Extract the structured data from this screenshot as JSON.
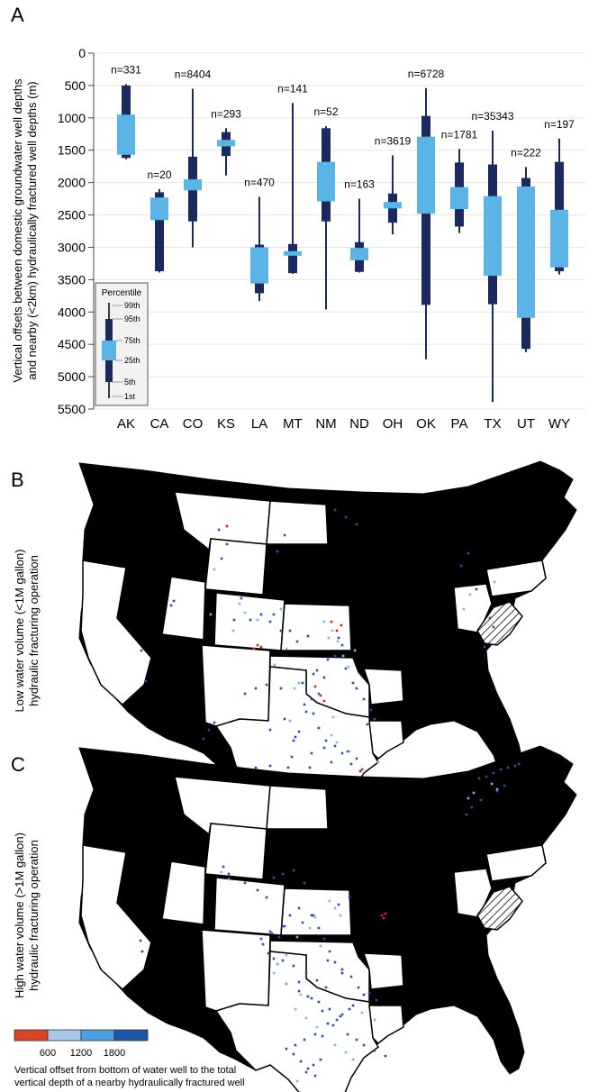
{
  "panels": {
    "a": {
      "letter": "A"
    },
    "b": {
      "letter": "B",
      "ylabel_line1": "Low water volume (<1M gallon)",
      "ylabel_line2": "hydraulic fracturing operation"
    },
    "c": {
      "letter": "C",
      "ylabel_line1": "High water volume (>1M gallon)",
      "ylabel_line2": "hydraulic fracturing operation"
    }
  },
  "colors": {
    "whisker": "#1b2a5e",
    "box": "#5ab4e6",
    "grid": "#e6e6e6",
    "land_dark": "#000000",
    "land_light": "#ffffff",
    "scale": [
      "#d7452b",
      "#a8c6e8",
      "#4f9fde",
      "#1e56a8"
    ],
    "scatter_dark": "#2d4fa8",
    "scatter_light": "#78b8e8",
    "scatter_red": "#d2291e"
  },
  "chart_data": [
    {
      "type": "box",
      "title": "",
      "ylabel_line1": "Vertical offsets between domestic groundwater well depths",
      "ylabel_line2": "and nearby (<2km) hydraulically fractured well depths (m)",
      "y_inverted": true,
      "ylim": [
        0,
        5500
      ],
      "yticks": [
        0,
        500,
        1000,
        1500,
        2000,
        2500,
        3000,
        3500,
        4000,
        4500,
        5000,
        5500
      ],
      "grid": true,
      "categories": [
        "AK",
        "CA",
        "CO",
        "KS",
        "LA",
        "MT",
        "NM",
        "ND",
        "OH",
        "OK",
        "PA",
        "TX",
        "UT",
        "WY"
      ],
      "counts": [
        "n=331",
        "n=20",
        "n=8404",
        "n=293",
        "n=470",
        "n=141",
        "n=52",
        "n=163",
        "n=3619",
        "n=6728",
        "n=1781",
        "n=35343",
        "n=222",
        "n=197"
      ],
      "percentiles": [
        {
          "p1": 480,
          "p5": 500,
          "p25": 950,
          "p75": 1570,
          "p95": 1620,
          "p99": 1640
        },
        {
          "p1": 2100,
          "p5": 2150,
          "p25": 2230,
          "p75": 2580,
          "p95": 3370,
          "p99": 3390
        },
        {
          "p1": 550,
          "p5": 1600,
          "p25": 1950,
          "p75": 2120,
          "p95": 2600,
          "p99": 3000
        },
        {
          "p1": 1160,
          "p5": 1220,
          "p25": 1340,
          "p75": 1440,
          "p95": 1590,
          "p99": 1890
        },
        {
          "p1": 2220,
          "p5": 2960,
          "p25": 3000,
          "p75": 3560,
          "p95": 3710,
          "p99": 3830
        },
        {
          "p1": 770,
          "p5": 2950,
          "p25": 3060,
          "p75": 3130,
          "p95": 3400,
          "p99": 3410
        },
        {
          "p1": 1130,
          "p5": 1160,
          "p25": 1680,
          "p75": 2290,
          "p95": 2600,
          "p99": 3960
        },
        {
          "p1": 2250,
          "p5": 2920,
          "p25": 3010,
          "p75": 3200,
          "p95": 3380,
          "p99": 3390
        },
        {
          "p1": 1580,
          "p5": 2170,
          "p25": 2300,
          "p75": 2400,
          "p95": 2620,
          "p99": 2800
        },
        {
          "p1": 540,
          "p5": 970,
          "p25": 1290,
          "p75": 2480,
          "p95": 3890,
          "p99": 4730
        },
        {
          "p1": 1480,
          "p5": 1690,
          "p25": 2070,
          "p75": 2410,
          "p95": 2680,
          "p99": 2780
        },
        {
          "p1": 1200,
          "p5": 1720,
          "p25": 2210,
          "p75": 3440,
          "p95": 3880,
          "p99": 5390
        },
        {
          "p1": 1760,
          "p5": 1930,
          "p25": 2060,
          "p75": 4090,
          "p95": 4570,
          "p99": 4620
        },
        {
          "p1": 1320,
          "p5": 1680,
          "p25": 2420,
          "p75": 3310,
          "p95": 3370,
          "p99": 3420
        }
      ],
      "legend": {
        "title": "Percentile",
        "labels": [
          "99th",
          "95th",
          "75th",
          "25th",
          "5th",
          "1st"
        ]
      }
    },
    {
      "type": "scatter",
      "panel": "B",
      "series": [
        {
          "color_key": "scatter_dark",
          "x": [
            162,
            157,
            190,
            193,
            260,
            268,
            278,
            290,
            300,
            304,
            312,
            322,
            330,
            342,
            336,
            348,
            352,
            360,
            364,
            372,
            376,
            380,
            384,
            392,
            396,
            404,
            412,
            408,
            416,
            338,
            346,
            354,
            340,
            332,
            326,
            324,
            344,
            352,
            360,
            368,
            320,
            334,
            322,
            340,
            356,
            362,
            386,
            396,
            410,
            420,
            312,
            296,
            284,
            272,
            300,
            316,
            328,
            346,
            238,
            232,
            226,
            214,
            248,
            258,
            270,
            284,
            300,
            304,
            306,
            314,
            348,
            354,
            362,
            372,
            380,
            390,
            400,
            356,
            370,
            384,
            376,
            358,
            544,
            548,
            538,
            529,
            512,
            520,
            243,
            252,
            246,
            308,
            316,
            372,
            384,
            396
          ],
          "y": [
            756,
            722,
            672,
            667,
            688,
            664,
            688,
            682,
            690,
            682,
            700,
            700,
            712,
            706,
            758,
            748,
            744,
            752,
            732,
            728,
            708,
            716,
            742,
            758,
            764,
            776,
            788,
            804,
            798,
            782,
            776,
            770,
            790,
            812,
            822,
            840,
            852,
            864,
            830,
            846,
            852,
            870,
            888,
            876,
            900,
            910,
            834,
            842,
            876,
            888,
            764,
            760,
            764,
            770,
            810,
            798,
            818,
            836,
            802,
            810,
            820,
            856,
            868,
            880,
            874,
            852,
            850,
            866,
            882,
            892,
            792,
            808,
            822,
            828,
            836,
            848,
            856,
            886,
            900,
            914,
            928,
            942,
            686,
            696,
            718,
            654,
            628,
            614,
            588,
            604,
            620,
            612,
            594,
            566,
            574,
            582
          ]
        },
        {
          "color_key": "scatter_light",
          "x": [
            375,
            381,
            387,
            369,
            360,
            365,
            394,
            370,
            332,
            327,
            305,
            318,
            322,
            331,
            340,
            352,
            368,
            374,
            388,
            420,
            390,
            266,
            272,
            259,
            312,
            286,
            238,
            234,
            549,
            522,
            515
          ],
          "y": [
            712,
            728,
            740,
            700,
            690,
            708,
            722,
            796,
            758,
            764,
            738,
            720,
            800,
            860,
            870,
            880,
            816,
            824,
            834,
            846,
            902,
            670,
            680,
            700,
            676,
            688,
            632,
            682,
            646,
            660,
            676
          ]
        },
        {
          "color_key": "scatter_red",
          "x": [
            286,
            290,
            282,
            379,
            374,
            368,
            350,
            356,
            360,
            396,
            402,
            410,
            400,
            252
          ],
          "y": [
            716,
            718,
            720,
            694,
            700,
            690,
            762,
            772,
            778,
            866,
            854,
            900,
            880,
            584
          ]
        }
      ]
    },
    {
      "type": "scatter",
      "panel": "C",
      "series": [
        {
          "color_key": "scatter_dark",
          "x": [
            156,
            158,
            292,
            298,
            304,
            308,
            248,
            254,
            272,
            286,
            296,
            304,
            314,
            326,
            338,
            300,
            310,
            316,
            322,
            332,
            346,
            354,
            360,
            366,
            372,
            380,
            390,
            398,
            410,
            418,
            388,
            378,
            364,
            350,
            338,
            328,
            318,
            326,
            334,
            342,
            350,
            358,
            370,
            380,
            392,
            404,
            362,
            352,
            340,
            326,
            314,
            332,
            342,
            354,
            366,
            374,
            314,
            302,
            290,
            318,
            332,
            346,
            358,
            386,
            396,
            404,
            416,
            428,
            364,
            380,
            356,
            348,
            340,
            532,
            540,
            548,
            556,
            564,
            572,
            576,
            560,
            552,
            534,
            524,
            518,
            388,
            376,
            348,
            336
          ],
          "y": [
            1044,
            1056,
            1048,
            1058,
            1064,
            1070,
            962,
            970,
            980,
            988,
            996,
            974,
            970,
            966,
            980,
            1034,
            1040,
            1028,
            1016,
            1008,
            1016,
            1030,
            1042,
            1056,
            1068,
            1076,
            1084,
            1096,
            1102,
            1110,
            1120,
            1128,
            1136,
            1148,
            1154,
            1160,
            1164,
            1170,
            1178,
            1186,
            1194,
            1150,
            1138,
            1126,
            1116,
            1104,
            1096,
            1088,
            1080,
            1072,
            1066,
            1090,
            1106,
            1112,
            1120,
            1132,
            1028,
            1036,
            1042,
            1092,
            1100,
            1108,
            1122,
            1148,
            1154,
            1160,
            1166,
            1172,
            1066,
            1080,
            1176,
            1182,
            1190,
            864,
            862,
            858,
            854,
            852,
            850,
            848,
            872,
            878,
            888,
            896,
            904,
            996,
            1004,
            1016,
            1024
          ]
        },
        {
          "color_key": "scatter_light",
          "x": [
            366,
            372,
            378,
            350,
            344,
            356,
            330,
            318,
            308,
            328,
            340,
            352,
            372,
            384,
            402,
            416,
            392,
            330,
            304,
            318,
            334,
            546,
            552,
            526,
            520,
            246,
            254
          ],
          "y": [
            1000,
            1008,
            1016,
            1018,
            1030,
            1050,
            1040,
            1060,
            1070,
            1120,
            1130,
            1140,
            1160,
            1168,
            1124,
            1132,
            1176,
            1200,
            1080,
            1092,
            1104,
            870,
            876,
            880,
            886,
            968,
            976
          ]
        },
        {
          "color_key": "scatter_red",
          "x": [
            424,
            428,
            426
          ],
          "y": [
            1016,
            1014,
            1019
          ]
        }
      ]
    }
  ],
  "scale_bar": {
    "ticks": [
      "600",
      "1200",
      "1800"
    ],
    "caption_line1": "Vertical offset from bottom of water well to the total",
    "caption_line2": "vertical depth of a nearby hydraulically fractured well"
  }
}
